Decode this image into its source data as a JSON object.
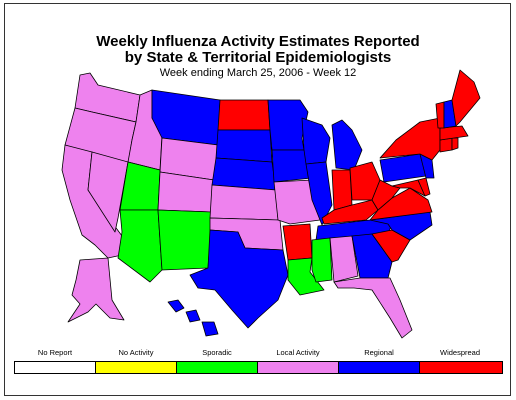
{
  "title_line1": "Weekly Influenza Activity Estimates Reported",
  "title_line2": "by State & Territorial Epidemiologists",
  "subtitle": "Week ending March 25, 2006 - Week 12",
  "colors": {
    "no_report": "#ffffff",
    "no_activity": "#ffff00",
    "sporadic": "#00ff00",
    "local": "#ee82ee",
    "regional": "#0000ff",
    "widespread": "#ff0000"
  },
  "legend": [
    {
      "label": "No Report",
      "key": "no_report"
    },
    {
      "label": "No Activity",
      "key": "no_activity"
    },
    {
      "label": "Sporadic",
      "key": "sporadic"
    },
    {
      "label": "Local Activity",
      "key": "local"
    },
    {
      "label": "Regional",
      "key": "regional"
    },
    {
      "label": "Widespread",
      "key": "widespread"
    }
  ],
  "states": [
    {
      "state": "Washington",
      "level": "local"
    },
    {
      "state": "Oregon",
      "level": "local"
    },
    {
      "state": "California",
      "level": "local"
    },
    {
      "state": "Nevada",
      "level": "local"
    },
    {
      "state": "Idaho",
      "level": "local"
    },
    {
      "state": "Montana",
      "level": "regional"
    },
    {
      "state": "Wyoming",
      "level": "local"
    },
    {
      "state": "Utah",
      "level": "sporadic"
    },
    {
      "state": "Colorado",
      "level": "local"
    },
    {
      "state": "Arizona",
      "level": "sporadic"
    },
    {
      "state": "New Mexico",
      "level": "sporadic"
    },
    {
      "state": "North Dakota",
      "level": "widespread"
    },
    {
      "state": "South Dakota",
      "level": "regional"
    },
    {
      "state": "Nebraska",
      "level": "regional"
    },
    {
      "state": "Kansas",
      "level": "local"
    },
    {
      "state": "Oklahoma",
      "level": "local"
    },
    {
      "state": "Texas",
      "level": "regional"
    },
    {
      "state": "Minnesota",
      "level": "regional"
    },
    {
      "state": "Iowa",
      "level": "regional"
    },
    {
      "state": "Missouri",
      "level": "local"
    },
    {
      "state": "Arkansas",
      "level": "widespread"
    },
    {
      "state": "Louisiana",
      "level": "sporadic"
    },
    {
      "state": "Wisconsin",
      "level": "regional"
    },
    {
      "state": "Illinois",
      "level": "regional"
    },
    {
      "state": "Michigan",
      "level": "regional"
    },
    {
      "state": "Indiana",
      "level": "widespread"
    },
    {
      "state": "Ohio",
      "level": "widespread"
    },
    {
      "state": "Kentucky",
      "level": "widespread"
    },
    {
      "state": "Tennessee",
      "level": "regional"
    },
    {
      "state": "Mississippi",
      "level": "sporadic"
    },
    {
      "state": "Alabama",
      "level": "local"
    },
    {
      "state": "Georgia",
      "level": "regional"
    },
    {
      "state": "Florida",
      "level": "local"
    },
    {
      "state": "South Carolina",
      "level": "widespread"
    },
    {
      "state": "North Carolina",
      "level": "regional"
    },
    {
      "state": "Virginia",
      "level": "widespread"
    },
    {
      "state": "West Virginia",
      "level": "widespread"
    },
    {
      "state": "Maryland",
      "level": "widespread"
    },
    {
      "state": "Delaware",
      "level": "widespread"
    },
    {
      "state": "Pennsylvania",
      "level": "regional"
    },
    {
      "state": "New Jersey",
      "level": "regional"
    },
    {
      "state": "New York",
      "level": "widespread"
    },
    {
      "state": "Connecticut",
      "level": "widespread"
    },
    {
      "state": "Rhode Island",
      "level": "widespread"
    },
    {
      "state": "Massachusetts",
      "level": "widespread"
    },
    {
      "state": "Vermont",
      "level": "widespread"
    },
    {
      "state": "New Hampshire",
      "level": "regional"
    },
    {
      "state": "Maine",
      "level": "widespread"
    },
    {
      "state": "Alaska",
      "level": "local"
    },
    {
      "state": "Hawaii",
      "level": "regional"
    }
  ]
}
